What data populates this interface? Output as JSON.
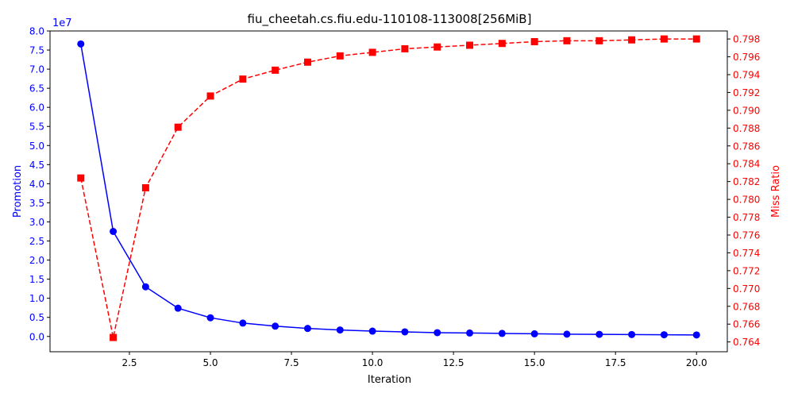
{
  "chart_data": {
    "type": "line",
    "title": "fiu_cheetah.cs.fiu.edu-110108-113008[256MiB]",
    "xlabel": "Iteration",
    "xlim": [
      0.05,
      20.95
    ],
    "xticks": [
      2.5,
      5.0,
      7.5,
      10.0,
      12.5,
      15.0,
      17.5,
      20.0
    ],
    "x": [
      1,
      2,
      3,
      4,
      5,
      6,
      7,
      8,
      9,
      10,
      11,
      12,
      13,
      14,
      15,
      16,
      17,
      18,
      19,
      20
    ],
    "left_axis": {
      "label": "Promotion",
      "color": "#0000ff",
      "offset_text": "1e7",
      "ylim": [
        -0.4,
        8.0
      ],
      "ticks": [
        0.0,
        0.5,
        1.0,
        1.5,
        2.0,
        2.5,
        3.0,
        3.5,
        4.0,
        4.5,
        5.0,
        5.5,
        6.0,
        6.5,
        7.0,
        7.5,
        8.0
      ]
    },
    "right_axis": {
      "label": "Miss Ratio",
      "color": "#ff0000",
      "ylim": [
        0.7629,
        0.7989
      ],
      "ticks": [
        0.764,
        0.766,
        0.768,
        0.77,
        0.772,
        0.774,
        0.776,
        0.778,
        0.78,
        0.782,
        0.784,
        0.786,
        0.788,
        0.79,
        0.792,
        0.794,
        0.796,
        0.798
      ]
    },
    "series": [
      {
        "axis": "left",
        "color": "#0000ff",
        "linestyle": "solid",
        "marker": "circle",
        "values": [
          7.66,
          2.75,
          1.3,
          0.74,
          0.49,
          0.35,
          0.27,
          0.21,
          0.17,
          0.14,
          0.12,
          0.1,
          0.09,
          0.08,
          0.07,
          0.06,
          0.055,
          0.05,
          0.045,
          0.04
        ]
      },
      {
        "axis": "right",
        "color": "#ff0000",
        "linestyle": "dashed",
        "marker": "square",
        "values": [
          0.7824,
          0.7645,
          0.7813,
          0.7881,
          0.7916,
          0.7935,
          0.7945,
          0.7954,
          0.7961,
          0.7965,
          0.7969,
          0.7971,
          0.7973,
          0.7975,
          0.7977,
          0.7978,
          0.7978,
          0.7979,
          0.798,
          0.798
        ]
      }
    ]
  }
}
